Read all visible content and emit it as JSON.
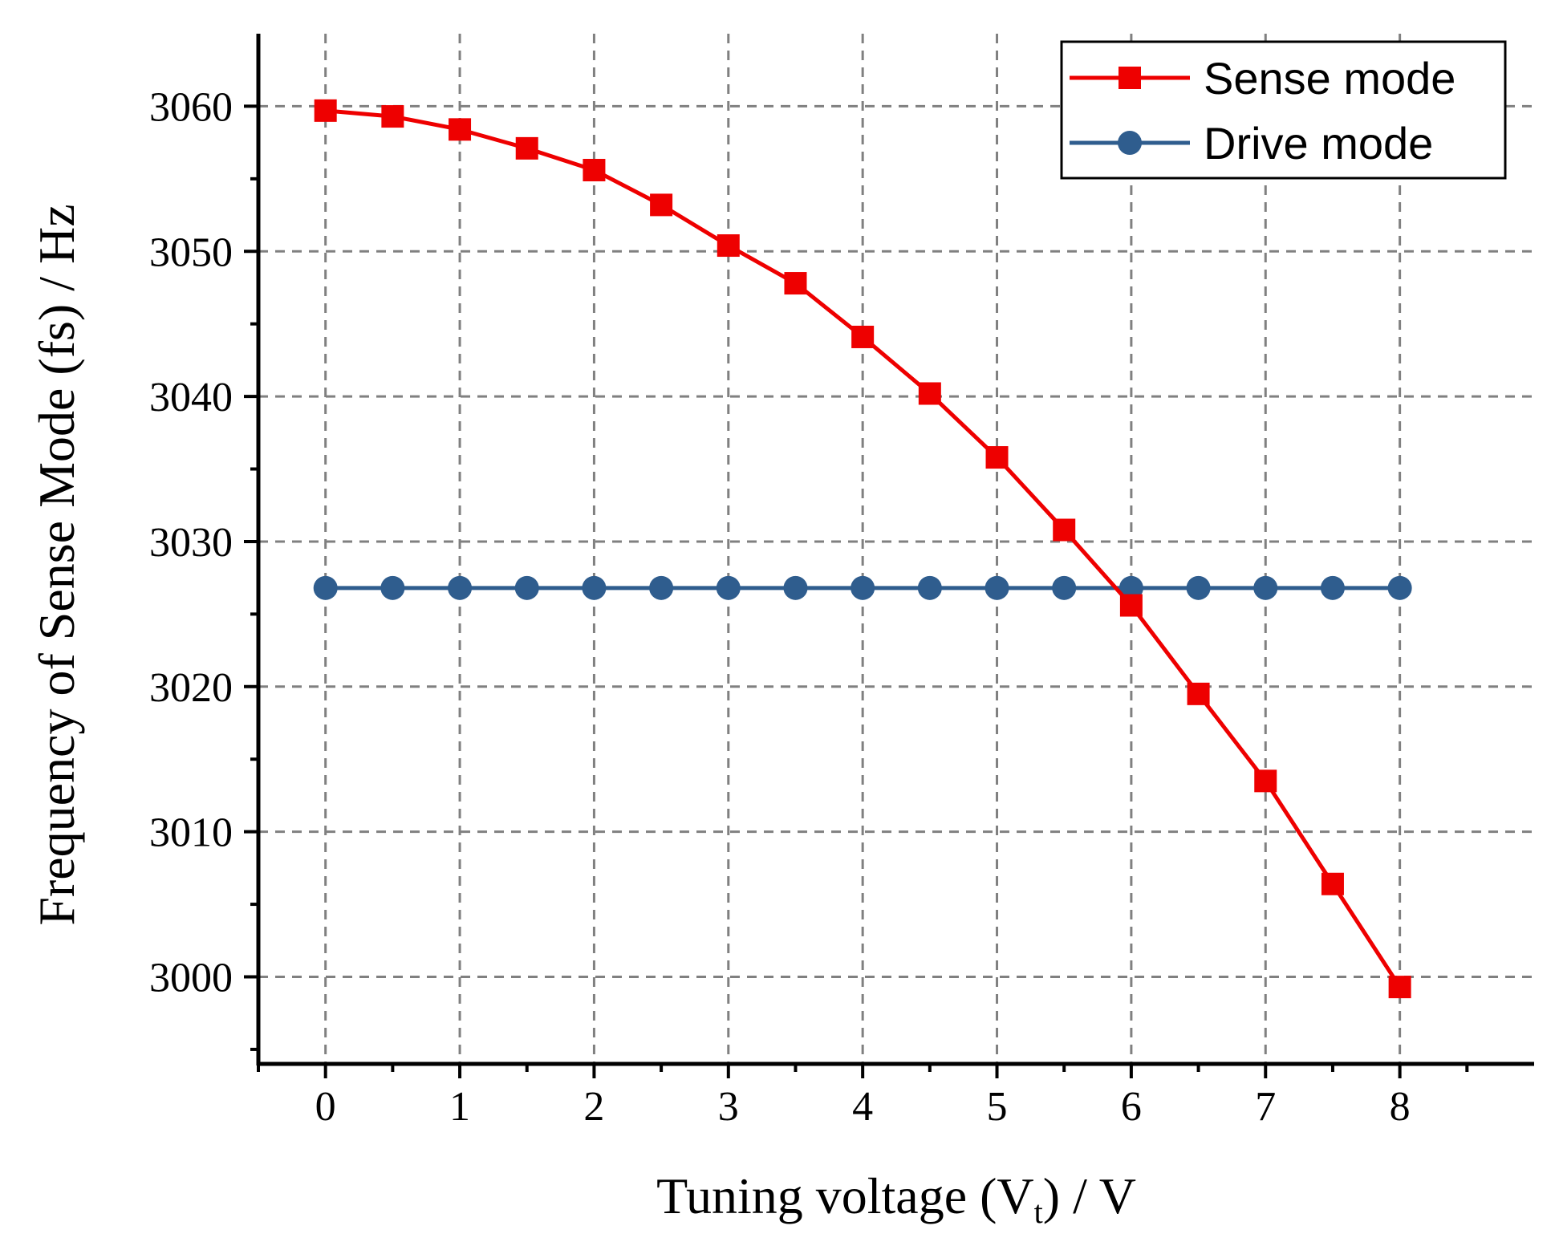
{
  "chart_data": {
    "type": "line",
    "title": "",
    "xlabel_main": "Tuning voltage (V",
    "xlabel_sub": "t",
    "xlabel_tail": ") / V",
    "ylabel": "Frequency of Sense Mode (fs) / Hz",
    "xlim": [
      -0.5,
      9.0
    ],
    "ylim": [
      2994,
      3065
    ],
    "x_ticks": [
      0,
      1,
      2,
      3,
      4,
      5,
      6,
      7,
      8
    ],
    "y_ticks": [
      3000,
      3010,
      3020,
      3030,
      3040,
      3050,
      3060
    ],
    "grid": true,
    "legend_position": "top-right",
    "x": [
      0,
      0.5,
      1,
      1.5,
      2,
      2.5,
      3,
      3.5,
      4,
      4.5,
      5,
      5.5,
      6,
      6.5,
      7,
      7.5,
      8
    ],
    "series": [
      {
        "name": "Sense mode",
        "color": "#ee0000",
        "marker": "square",
        "values": [
          3059.7,
          3059.3,
          3058.4,
          3057.1,
          3055.6,
          3053.2,
          3050.4,
          3047.8,
          3044.1,
          3040.2,
          3035.8,
          3030.8,
          3025.6,
          3019.5,
          3013.5,
          3006.4,
          2999.3
        ]
      },
      {
        "name": "Drive mode",
        "color": "#2f5d8e",
        "marker": "circle",
        "values": [
          3026.8,
          3026.8,
          3026.8,
          3026.8,
          3026.8,
          3026.8,
          3026.8,
          3026.8,
          3026.8,
          3026.8,
          3026.8,
          3026.8,
          3026.8,
          3026.8,
          3026.8,
          3026.8,
          3026.8
        ]
      }
    ]
  }
}
